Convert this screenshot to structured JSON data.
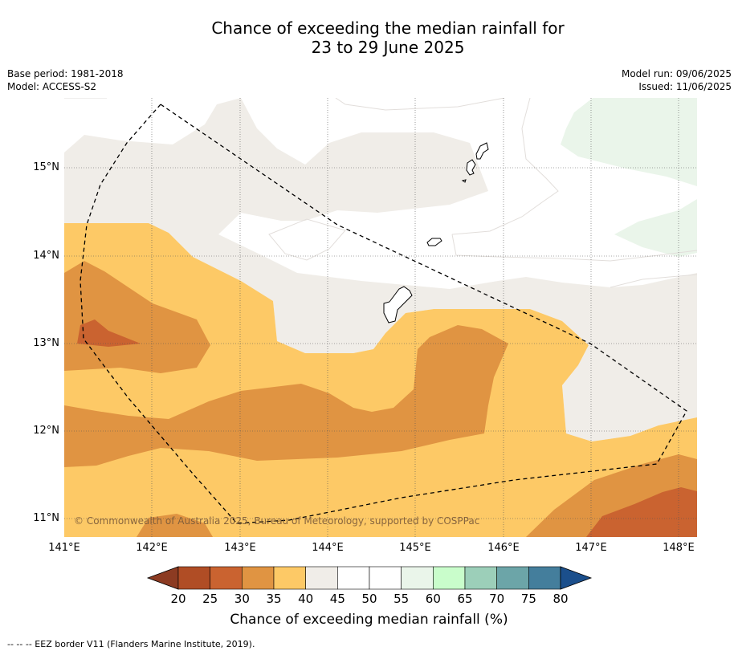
{
  "title_line1": "Chance of exceeding the median rainfall for",
  "title_line2": "23 to 29 June 2025",
  "meta": {
    "base_period": "Base period: 1981-2018",
    "model": "Model: ACCESS-S2",
    "model_run": "Model run: 09/06/2025",
    "issued": "Issued: 11/06/2025"
  },
  "copyright": "© Commonwealth of Australia 2025, Bureau of Meteorology, supported by COSPPac",
  "lat_labels": [
    "15°N",
    "14°N",
    "13°N",
    "12°N",
    "11°N"
  ],
  "lon_labels": [
    "141°E",
    "142°E",
    "143°E",
    "144°E",
    "145°E",
    "146°E",
    "147°E",
    "148°E"
  ],
  "colorbar": {
    "ticks": [
      "20",
      "25",
      "30",
      "35",
      "40",
      "45",
      "50",
      "55",
      "60",
      "65",
      "70",
      "75",
      "80"
    ],
    "colors": [
      "#8c3b22",
      "#b04d25",
      "#ca6330",
      "#e09442",
      "#fdc966",
      "#f0ede8",
      "#ffffff",
      "#ffffff",
      "#eaf5ea",
      "#c9fdcb",
      "#9ccfb9",
      "#6ca5a8",
      "#447e9c",
      "#1b4f8c"
    ],
    "label": "Chance of exceeding median rainfall (%)"
  },
  "legend_note": "--  --  -- EEZ border V11 (Flanders Marine Institute, 2019).",
  "map_extent": {
    "lon": [
      141.0,
      148.2
    ],
    "lat": [
      10.8,
      15.8
    ]
  }
}
